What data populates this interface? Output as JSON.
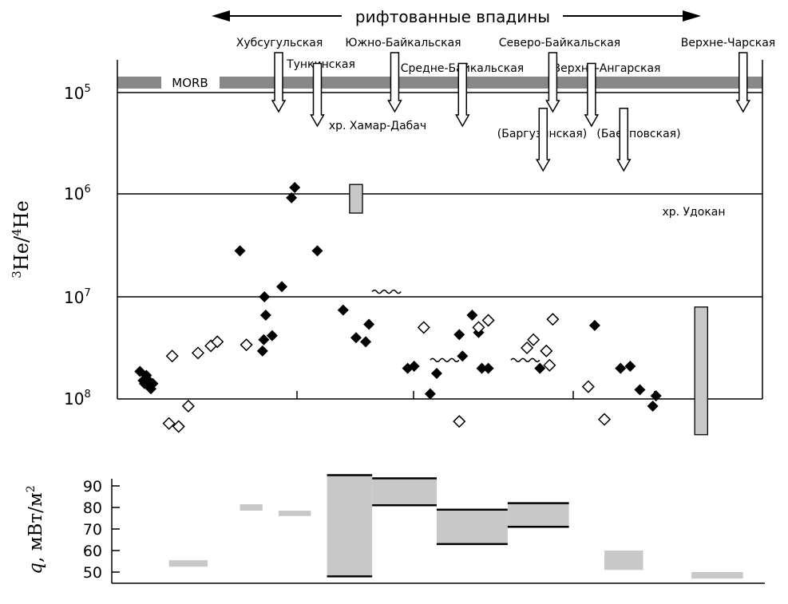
{
  "header": {
    "rift_label": "рифтованные впадины"
  },
  "colors": {
    "filled": "#000000",
    "open_fill": "#ffffff",
    "gray_box": "#c8c8c8",
    "morb_band": "#888888",
    "line": "#000000"
  },
  "chart_data": [
    {
      "type": "scatter",
      "ylabel_main": "He",
      "ylabel_sup1": "3",
      "ylabel_sup2": "4",
      "ylabel_mid": "He/",
      "y_scale": "log",
      "y_axis": {
        "ticks": [
          {
            "mant": "10",
            "exp": "5"
          },
          {
            "mant": "10",
            "exp": "6"
          },
          {
            "mant": "10",
            "exp": "7"
          },
          {
            "mant": "10",
            "exp": "8"
          }
        ]
      },
      "morb_label": "MORB",
      "regions": [
        {
          "name": "Хубсугульская",
          "key": "hubs"
        },
        {
          "name": "Тункинская",
          "key": "tunk"
        },
        {
          "name": "Южно-Байкальская",
          "key": "sbai"
        },
        {
          "name": "хр. Хамар-Дабач",
          "key": "hamar"
        },
        {
          "name": "Средне-Байкальская",
          "key": "mbai"
        },
        {
          "name": "Северо-Байкальская",
          "key": "nbai"
        },
        {
          "name": "(Баргузинская)",
          "key": "barg"
        },
        {
          "name": "Верхне-Ангарская",
          "key": "vang"
        },
        {
          "name": "(Баеуповская)",
          "key": "baeu"
        },
        {
          "name": "Верхне-Чарская",
          "key": "vchar"
        },
        {
          "name": "хр. Удокан",
          "key": "udokan"
        }
      ],
      "points_filled": [
        [
          0.35,
          2.73
        ],
        [
          0.45,
          2.77
        ],
        [
          0.4,
          2.82
        ],
        [
          0.5,
          2.83
        ],
        [
          0.55,
          2.85
        ],
        [
          0.48,
          2.87
        ],
        [
          0.52,
          2.9
        ],
        [
          0.42,
          2.85
        ],
        [
          1.9,
          1.55
        ],
        [
          2.25,
          2.53
        ],
        [
          2.27,
          2.42
        ],
        [
          2.3,
          2.18
        ],
        [
          2.28,
          2.0
        ],
        [
          2.4,
          2.38
        ],
        [
          2.55,
          1.9
        ],
        [
          2.7,
          1.03
        ],
        [
          2.75,
          0.93
        ],
        [
          3.1,
          1.55
        ],
        [
          3.5,
          2.13
        ],
        [
          3.7,
          2.4
        ],
        [
          3.85,
          2.44
        ],
        [
          3.9,
          2.27
        ],
        [
          4.5,
          2.7
        ],
        [
          4.6,
          2.68
        ],
        [
          4.95,
          2.75
        ],
        [
          4.85,
          2.95
        ],
        [
          5.3,
          2.37
        ],
        [
          5.65,
          2.7
        ],
        [
          5.35,
          2.58
        ],
        [
          5.5,
          2.18
        ],
        [
          5.6,
          2.35
        ],
        [
          5.75,
          2.7
        ],
        [
          6.55,
          2.7
        ],
        [
          7.4,
          2.28
        ],
        [
          7.8,
          2.7
        ],
        [
          7.95,
          2.68
        ],
        [
          8.1,
          2.91
        ],
        [
          8.3,
          3.07
        ],
        [
          8.35,
          2.97
        ]
      ],
      "points_open": [
        [
          0.85,
          2.58
        ],
        [
          0.8,
          3.24
        ],
        [
          0.95,
          3.27
        ],
        [
          1.1,
          3.07
        ],
        [
          1.25,
          2.55
        ],
        [
          1.45,
          2.48
        ],
        [
          1.55,
          2.44
        ],
        [
          2.0,
          2.47
        ],
        [
          4.75,
          2.3
        ],
        [
          5.3,
          3.22
        ],
        [
          5.6,
          2.3
        ],
        [
          5.75,
          2.23
        ],
        [
          6.35,
          2.5
        ],
        [
          6.45,
          2.42
        ],
        [
          6.7,
          2.67
        ],
        [
          6.75,
          2.22
        ],
        [
          6.65,
          2.53
        ],
        [
          7.55,
          3.2
        ],
        [
          7.3,
          2.88
        ]
      ],
      "gray_boxes": [
        {
          "x0": 3.6,
          "x1": 3.8,
          "y_top": 0.9,
          "y_bot": 1.18
        },
        {
          "x0": 8.95,
          "x1": 9.15,
          "y_top": 2.1,
          "y_bot": 3.35
        }
      ],
      "wavy_lines": [
        {
          "x0": 3.95,
          "x1": 4.45,
          "y": 1.95
        },
        {
          "x0": 4.85,
          "x1": 5.35,
          "y": 2.62
        },
        {
          "x0": 6.1,
          "x1": 6.6,
          "y": 2.62
        }
      ]
    },
    {
      "type": "bar",
      "ylabel": "q, мВт/м",
      "ylabel_sup": "2",
      "y_ticks": [
        "90",
        "80",
        "70",
        "60",
        "50"
      ],
      "ylim": [
        45,
        95
      ],
      "ranges": [
        {
          "x0": 0.8,
          "x1": 1.4,
          "lo": 52.5,
          "hi": 55.5,
          "outlined": false
        },
        {
          "x0": 1.9,
          "x1": 2.25,
          "lo": 78.5,
          "hi": 81.5,
          "outlined": false
        },
        {
          "x0": 2.5,
          "x1": 3.0,
          "lo": 76.0,
          "hi": 78.5,
          "outlined": false
        },
        {
          "x0": 3.25,
          "x1": 3.95,
          "lo": 48.0,
          "hi": 95.0,
          "outlined": true
        },
        {
          "x0": 3.95,
          "x1": 4.95,
          "lo": 81.0,
          "hi": 93.5,
          "outlined": true
        },
        {
          "x0": 4.95,
          "x1": 6.05,
          "lo": 63.0,
          "hi": 79.0,
          "outlined": true
        },
        {
          "x0": 6.05,
          "x1": 7.0,
          "lo": 71.0,
          "hi": 82.0,
          "outlined": true
        },
        {
          "x0": 7.55,
          "x1": 8.15,
          "lo": 51.0,
          "hi": 60.0,
          "outlined": false
        },
        {
          "x0": 8.9,
          "x1": 9.7,
          "lo": 47.0,
          "hi": 50.0,
          "outlined": false
        }
      ]
    }
  ]
}
